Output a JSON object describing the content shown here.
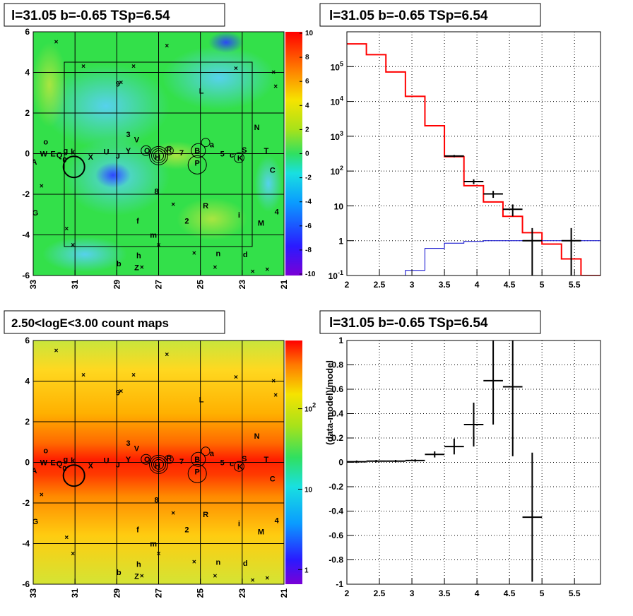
{
  "chart_data": [
    {
      "type": "heatmap",
      "title": "l=31.05 b=-0.65 TSp=6.54",
      "xlabel": "",
      "ylabel": "",
      "xlim": [
        33,
        21
      ],
      "ylim": [
        -6,
        6
      ],
      "x_ticks": [
        "33",
        "31",
        "29",
        "27",
        "25",
        "23",
        "21"
      ],
      "y_ticks": [
        "6",
        "4",
        "2",
        "0",
        "-2",
        "-4",
        "-6"
      ],
      "colorbar_ticks": [
        "10",
        "8",
        "6",
        "4",
        "2",
        "0",
        "-2",
        "-4",
        "-6",
        "-8",
        "-10"
      ],
      "sources": [
        {
          "label": "A",
          "l": 32.95,
          "b": -0.4
        },
        {
          "label": "W",
          "l": 32.5,
          "b": 0.0
        },
        {
          "label": "E",
          "l": 32.05,
          "b": 0.0
        },
        {
          "label": "o",
          "l": 32.4,
          "b": 0.6
        },
        {
          "label": "Q",
          "l": 31.75,
          "b": -0.05
        },
        {
          "label": "g",
          "l": 31.45,
          "b": 0.15
        },
        {
          "label": "k",
          "l": 31.1,
          "b": 0.1
        },
        {
          "label": "X",
          "l": 30.25,
          "b": -0.15
        },
        {
          "label": "U",
          "l": 29.5,
          "b": 0.1
        },
        {
          "label": "J",
          "l": 28.95,
          "b": -0.1
        },
        {
          "label": "Y",
          "l": 28.45,
          "b": 0.15
        },
        {
          "label": "3",
          "l": 28.45,
          "b": 0.95
        },
        {
          "label": "V",
          "l": 28.05,
          "b": 0.7
        },
        {
          "label": "O",
          "l": 27.55,
          "b": 0.15
        },
        {
          "label": "H",
          "l": 27.05,
          "b": -0.15
        },
        {
          "label": "R",
          "l": 26.5,
          "b": 0.2
        },
        {
          "label": "7",
          "l": 25.9,
          "b": 0.05
        },
        {
          "label": "B",
          "l": 25.15,
          "b": 0.15
        },
        {
          "label": "P",
          "l": 25.15,
          "b": -0.45
        },
        {
          "label": "a",
          "l": 24.45,
          "b": 0.45
        },
        {
          "label": "5",
          "l": 23.95,
          "b": 0.0
        },
        {
          "label": "c",
          "l": 23.5,
          "b": -0.05
        },
        {
          "label": "K",
          "l": 23.1,
          "b": -0.2
        },
        {
          "label": "S",
          "l": 22.9,
          "b": 0.2
        },
        {
          "label": "T",
          "l": 21.85,
          "b": 0.15
        },
        {
          "label": "N",
          "l": 22.3,
          "b": 1.3
        },
        {
          "label": "C",
          "l": 21.55,
          "b": -0.8
        },
        {
          "label": "L",
          "l": 24.95,
          "b": 3.1
        },
        {
          "label": "9",
          "l": 28.95,
          "b": 3.45
        },
        {
          "label": "8",
          "l": 27.1,
          "b": -1.85
        },
        {
          "label": "R",
          "l": 24.75,
          "b": -2.55
        },
        {
          "label": "G",
          "l": 32.9,
          "b": -2.9
        },
        {
          "label": "f",
          "l": 28.0,
          "b": -3.3
        },
        {
          "label": "2",
          "l": 25.65,
          "b": -3.3
        },
        {
          "label": "i",
          "l": 23.15,
          "b": -3.0
        },
        {
          "label": "M",
          "l": 22.1,
          "b": -3.4
        },
        {
          "label": "4",
          "l": 21.35,
          "b": -2.85
        },
        {
          "label": "m",
          "l": 27.25,
          "b": -4.0
        },
        {
          "label": "h",
          "l": 27.95,
          "b": -5.0
        },
        {
          "label": "n",
          "l": 24.15,
          "b": -4.9
        },
        {
          "label": "d",
          "l": 22.85,
          "b": -4.95
        },
        {
          "label": "b",
          "l": 28.9,
          "b": -5.4
        },
        {
          "label": "Z",
          "l": 28.05,
          "b": -5.6
        },
        {
          "label": "0",
          "l": 31.5,
          "b": -0.3
        }
      ]
    },
    {
      "type": "line",
      "title": "l=31.05 b=-0.65 TSp=6.54",
      "xlabel": "",
      "ylabel": "",
      "log_y": true,
      "xlim": [
        2.0,
        5.9
      ],
      "ylim": [
        0.1,
        1000000
      ],
      "x_ticks": [
        "2",
        "2.5",
        "3",
        "3.5",
        "4",
        "4.5",
        "5",
        "5.5"
      ],
      "y_ticks": [
        "10^5",
        "10^4",
        "10^3",
        "10^2",
        "10",
        "1",
        "10^-1"
      ],
      "bin_edges": [
        2.0,
        2.3,
        2.6,
        2.9,
        3.2,
        3.5,
        3.8,
        4.1,
        4.4,
        4.7,
        5.0,
        5.3,
        5.6,
        5.9
      ],
      "series": [
        {
          "color": "#ff0000",
          "values": [
            450000,
            220000,
            70000,
            14000,
            2000,
            260,
            38,
            13,
            5,
            1.7,
            0.8,
            0.3,
            0.1
          ]
        },
        {
          "color": "#0000cc",
          "values": [
            0.1,
            0.1,
            0.1,
            0.14,
            0.6,
            0.85,
            0.95,
            1.0,
            1.0,
            1.0,
            1.0,
            1.0,
            1.0
          ]
        }
      ],
      "data_points": [
        {
          "x": 3.65,
          "y": 270,
          "xerr": 0.15,
          "ylo": 250,
          "yhi": 290
        },
        {
          "x": 3.95,
          "y": 50,
          "xerr": 0.15,
          "ylo": 42,
          "yhi": 58
        },
        {
          "x": 4.25,
          "y": 22,
          "xerr": 0.15,
          "ylo": 17,
          "yhi": 27
        },
        {
          "x": 4.55,
          "y": 8,
          "xerr": 0.15,
          "ylo": 5,
          "yhi": 11
        },
        {
          "x": 4.85,
          "y": 1,
          "xerr": 0.15,
          "ylo": 0.1,
          "yhi": 2.3
        },
        {
          "x": 5.45,
          "y": 1,
          "xerr": 0.15,
          "ylo": 0.1,
          "yhi": 2.3
        }
      ]
    },
    {
      "type": "heatmap",
      "title": "2.50<logE<3.00 count maps",
      "xlabel": "",
      "ylabel": "",
      "xlim": [
        33,
        21
      ],
      "ylim": [
        -6,
        6
      ],
      "x_ticks": [
        "33",
        "31",
        "29",
        "27",
        "25",
        "23",
        "21"
      ],
      "y_ticks": [
        "6",
        "4",
        "2",
        "0",
        "-2",
        "-4",
        "-6"
      ],
      "colorbar_ticks": [
        "10^2",
        "10",
        "1"
      ],
      "log_colorbar": true
    },
    {
      "type": "scatter",
      "title": "l=31.05 b=-0.65 TSp=6.54",
      "xlabel": "",
      "ylabel": "(data-model)/model",
      "xlim": [
        2.0,
        5.9
      ],
      "ylim": [
        -1,
        1
      ],
      "x_ticks": [
        "2",
        "2.5",
        "3",
        "3.5",
        "4",
        "4.5",
        "5",
        "5.5"
      ],
      "y_ticks": [
        "1",
        "0.8",
        "0.6",
        "0.4",
        "0.2",
        "0",
        "-0.2",
        "-0.4",
        "-0.6",
        "-0.8",
        "-1"
      ],
      "points": [
        {
          "x": 2.15,
          "y": 0.005,
          "xerr": 0.15,
          "yerr": 0.01
        },
        {
          "x": 2.45,
          "y": 0.01,
          "xerr": 0.15,
          "yerr": 0.01
        },
        {
          "x": 2.75,
          "y": 0.01,
          "xerr": 0.15,
          "yerr": 0.01
        },
        {
          "x": 3.05,
          "y": 0.015,
          "xerr": 0.15,
          "yerr": 0.01
        },
        {
          "x": 3.35,
          "y": 0.065,
          "xerr": 0.15,
          "yerr": 0.025
        },
        {
          "x": 3.65,
          "y": 0.13,
          "xerr": 0.15,
          "yerr": 0.065
        },
        {
          "x": 3.95,
          "y": 0.31,
          "xerr": 0.15,
          "yerr": 0.18
        },
        {
          "x": 4.25,
          "y": 0.67,
          "xerr": 0.15,
          "yerr": 0.36
        },
        {
          "x": 4.55,
          "y": 0.62,
          "xerr": 0.15,
          "yerr": 0.57
        },
        {
          "x": 4.85,
          "y": -0.45,
          "xerr": 0.15,
          "yerr": 0.53
        }
      ]
    }
  ]
}
